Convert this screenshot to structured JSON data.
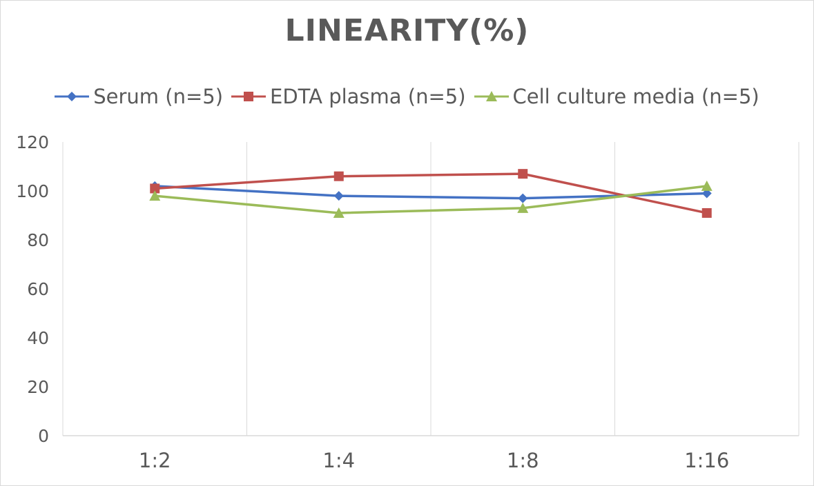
{
  "chart_data": {
    "type": "line",
    "title": "LINEARITY(%)",
    "categories": [
      "1:2",
      "1:4",
      "1:8",
      "1:16"
    ],
    "ylim": [
      0,
      120
    ],
    "yticks": [
      0,
      20,
      40,
      60,
      80,
      100,
      120
    ],
    "grid": "vertical",
    "legend_position": "top",
    "series": [
      {
        "name": "Serum (n=5)",
        "color": "#4472c4",
        "marker": "diamond",
        "values": [
          102,
          98,
          97,
          99
        ]
      },
      {
        "name": "EDTA plasma (n=5)",
        "color": "#c0504d",
        "marker": "square",
        "values": [
          101,
          106,
          107,
          91
        ]
      },
      {
        "name": "Cell culture media (n=5)",
        "color": "#9bbb59",
        "marker": "triangle",
        "values": [
          98,
          91,
          93,
          102
        ]
      }
    ]
  }
}
